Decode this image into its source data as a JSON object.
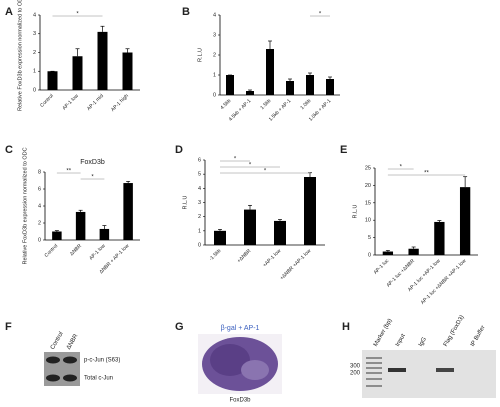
{
  "chart_data": [
    {
      "type": "bar",
      "panel": "A",
      "y_label": "Relative FoxD3b expression normalized to ODC",
      "color": "#000000",
      "categories": [
        "Control",
        "AP-1 low",
        "AP-1 mid",
        "AP-1 high"
      ],
      "values": [
        1,
        1.8,
        3.1,
        2.0
      ],
      "errors": [
        0,
        0.4,
        0.3,
        0.2
      ],
      "ylim": [
        0,
        4
      ],
      "yticks": [
        0,
        1,
        2,
        3,
        4
      ],
      "significance": [
        {
          "from": 0,
          "to": 2,
          "label": "*"
        }
      ]
    },
    {
      "type": "bar",
      "panel": "B",
      "y_label": "R.L.U",
      "color": "#000000",
      "categories": [
        "4.5kb",
        "4.5kb + AP-1",
        "1.5kb",
        "1.5kb + AP-1",
        "1.0kb",
        "1.0kb + AP-1"
      ],
      "values": [
        1.0,
        0.2,
        2.3,
        0.7,
        1.0,
        0.8
      ],
      "errors": [
        0,
        0.05,
        0.4,
        0.1,
        0.1,
        0.1
      ],
      "ylim": [
        0,
        4
      ],
      "yticks": [
        0,
        1,
        2,
        3,
        4
      ],
      "significance": [
        {
          "from": 4,
          "to": 5,
          "label": "*"
        }
      ]
    },
    {
      "type": "bar",
      "panel": "C",
      "title": "FoxD3b",
      "y_label": "Relative FoxD3b expression normalized to ODC",
      "color": "#000000",
      "categories": [
        "Control",
        "ΔNBR",
        "AP-1 low",
        "ΔNBR + AP-1 low"
      ],
      "values": [
        1,
        3.3,
        1.3,
        6.7
      ],
      "errors": [
        0.1,
        0.2,
        0.4,
        0.2
      ],
      "ylim": [
        0,
        8
      ],
      "yticks": [
        0,
        2,
        4,
        6,
        8
      ],
      "significance": [
        {
          "from": 0,
          "to": 1,
          "label": "**"
        },
        {
          "from": 1,
          "to": 2,
          "label": "*"
        }
      ]
    },
    {
      "type": "bar",
      "panel": "D",
      "y_label": "R.L.U",
      "color": "#000000",
      "categories": [
        "-1.5kb",
        "+ΔNBR",
        "+AP-1 low",
        "+ΔNBR +AP-1 low"
      ],
      "values": [
        1,
        2.5,
        1.7,
        4.8
      ],
      "errors": [
        0.1,
        0.3,
        0.1,
        0.3
      ],
      "ylim": [
        0,
        6
      ],
      "yticks": [
        0,
        1,
        2,
        3,
        4,
        5,
        6
      ],
      "significance": [
        {
          "from": 0,
          "to": 1,
          "label": "*"
        },
        {
          "from": 0,
          "to": 2,
          "label": "*"
        },
        {
          "from": 0,
          "to": 3,
          "label": "*"
        }
      ]
    },
    {
      "type": "bar",
      "panel": "E",
      "y_label": "R.L.U",
      "color": "#000000",
      "categories": [
        "AP-1 luc",
        "AP-1 luc +ΔNBR",
        "AP-1 luc +AP-1 low",
        "AP-1 luc +ΔNBR +AP-1 low"
      ],
      "values": [
        1,
        1.8,
        9.5,
        19.5
      ],
      "errors": [
        0.3,
        0.5,
        0.4,
        3
      ],
      "ylim": [
        0,
        25
      ],
      "yticks": [
        0,
        5,
        10,
        15,
        20,
        25
      ],
      "significance": [
        {
          "from": 0,
          "to": 1,
          "label": "*"
        },
        {
          "from": 0,
          "to": 3,
          "label": "**"
        }
      ]
    }
  ],
  "panels": {
    "F": {
      "letter": "F",
      "lanes": [
        "Control",
        "ΔNBR"
      ],
      "bands": [
        "p-c-Jun (S63)",
        "Total c-Jun"
      ]
    },
    "G": {
      "letter": "G",
      "label": "β-gal + AP-1",
      "caption": "FoxD3b"
    },
    "H": {
      "letter": "H",
      "lanes": [
        "Marker (bp)",
        "Input",
        "IgG",
        "Flag (FoxD3)",
        "IP Buffer"
      ],
      "sizes": [
        "300",
        "200"
      ]
    }
  }
}
